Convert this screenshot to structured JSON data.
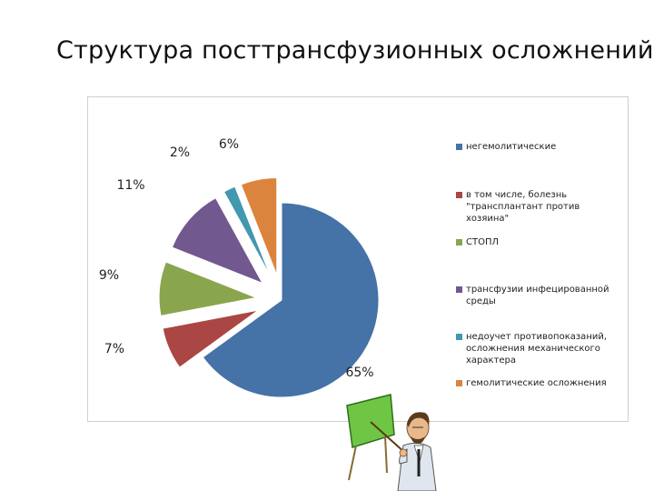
{
  "slide": {
    "title": "Структура посттрансфузионных осложнений"
  },
  "colors": {
    "negemolytic": "#4572a7",
    "gvhd": "#aa4643",
    "stopl": "#89a54e",
    "infected": "#71588f",
    "contra": "#4198af",
    "hemolytic": "#db843d"
  },
  "chart_data": {
    "type": "pie",
    "title": "",
    "legend_position": "right",
    "slices": [
      {
        "label": "негемолитические",
        "value": 65,
        "display": "65%",
        "color": "#4572a7"
      },
      {
        "label": "в том числе, болезнь \"трансплантант против хозяина\"",
        "value": 7,
        "display": "7%",
        "color": "#aa4643"
      },
      {
        "label": "СТОПЛ",
        "value": 9,
        "display": "9%",
        "color": "#89a54e"
      },
      {
        "label": "трансфузии инфецированной среды",
        "value": 11,
        "display": "11%",
        "color": "#71588f"
      },
      {
        "label": "недоучет противопоказаний, осложнения механического характера",
        "value": 2,
        "display": "2%",
        "color": "#4198af"
      },
      {
        "label": "гемолитические осложнения",
        "value": 6,
        "display": "6%",
        "color": "#db843d"
      }
    ]
  },
  "illustration": {
    "icon": "presenter-with-board-icon"
  }
}
